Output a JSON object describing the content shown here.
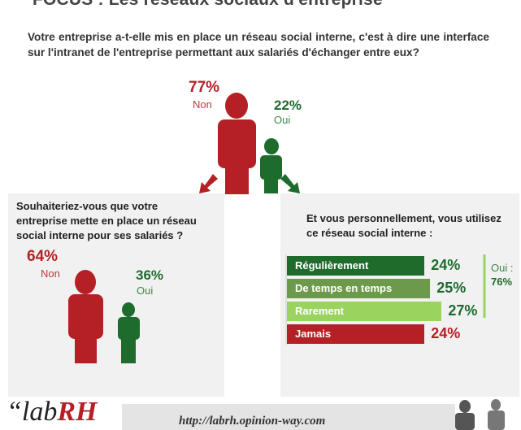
{
  "header": {
    "title": "FOCUS : Les réseaux sociaux d'entreprise"
  },
  "questions": {
    "main": "Votre entreprise a-t-elle mis en place un réseau social interne, c'est à dire une interface sur l'intranet de l'entreprise permettant aux salariés d'échanger entre eux?",
    "left": "Souhaiteriez-vous que votre entreprise mette en place un réseau social interne pour ses salariés ?",
    "right": "Et vous personnellement, vous utilisez ce réseau social interne :"
  },
  "colors": {
    "red": "#b52025",
    "green": "#1e6b2e",
    "panel": "#f1f1f1"
  },
  "chart_data": [
    {
      "type": "pie",
      "question_key": "main",
      "categories": [
        "Non",
        "Oui"
      ],
      "values": [
        77,
        22
      ],
      "labels": [
        "77%",
        "22%"
      ]
    },
    {
      "type": "pie",
      "question_key": "left",
      "categories": [
        "Non",
        "Oui"
      ],
      "values": [
        64,
        36
      ],
      "labels": [
        "64%",
        "36%"
      ]
    },
    {
      "type": "bar",
      "orientation": "horizontal",
      "question_key": "right",
      "categories": [
        "Régulièrement",
        "De temps en temps",
        "Rarement",
        "Jamais"
      ],
      "values": [
        24,
        25,
        27,
        24
      ],
      "labels": [
        "24%",
        "25%",
        "27%",
        "24%"
      ],
      "colors": [
        "#1f6b2c",
        "#6d9a4a",
        "#9bd35f",
        "#b52025"
      ],
      "group": {
        "label": "Oui :",
        "value": "76%",
        "members": [
          "Régulièrement",
          "De temps en temps",
          "Rarement"
        ]
      }
    }
  ],
  "footer": {
    "logo_prefix": "“lab",
    "logo_rh": "RH",
    "url": "http://labrh.opinion-way.com"
  }
}
